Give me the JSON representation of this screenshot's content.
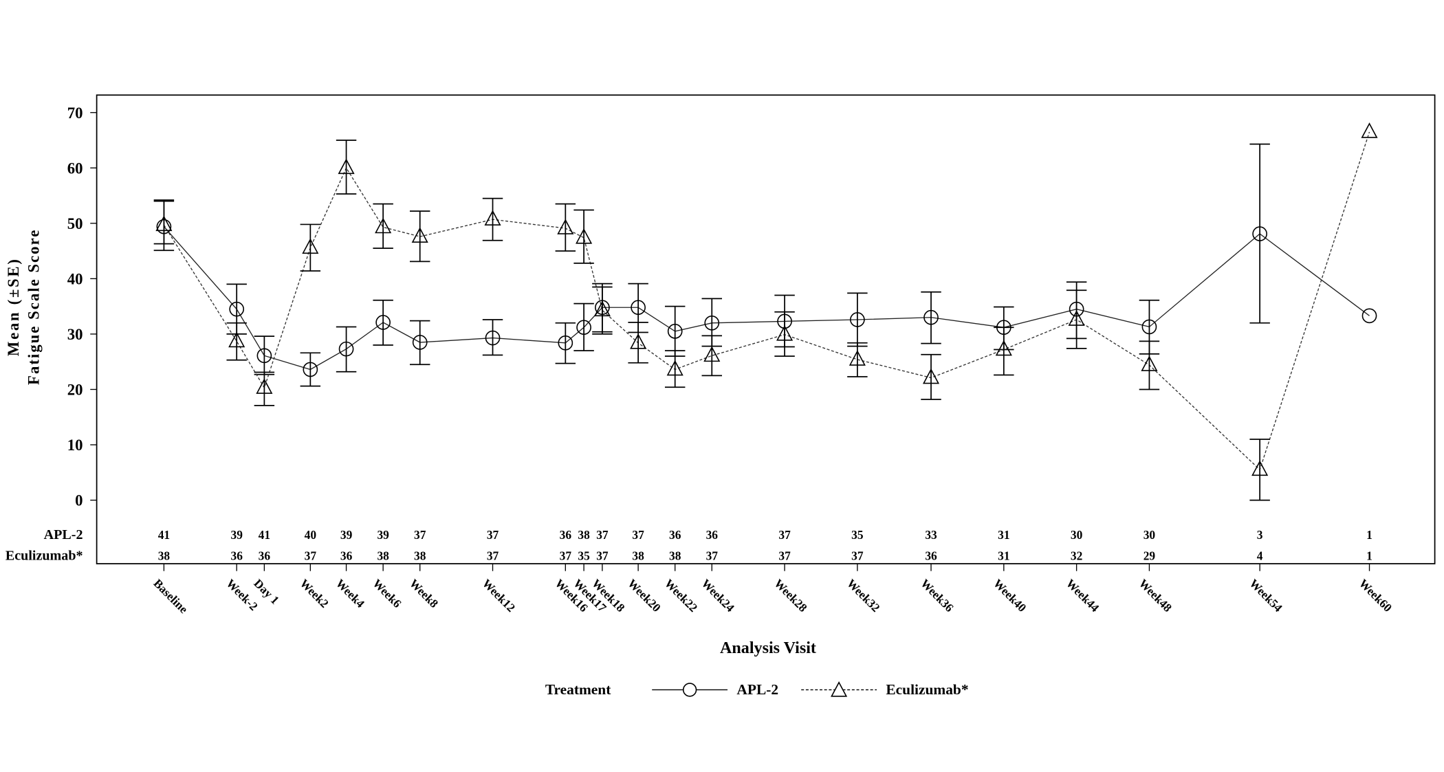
{
  "chart_data": {
    "type": "line",
    "ylabel_lines": [
      "Mean (±SE)",
      "Fatigue Scale Score"
    ],
    "xlabel": "Analysis Visit",
    "ylim": [
      0,
      70
    ],
    "yticks": [
      0,
      10,
      20,
      30,
      40,
      50,
      60,
      70
    ],
    "grid": false,
    "legend_placement": "bottom",
    "legend_title": "Treatment",
    "categories": [
      "Baseline",
      "Week-2",
      "Day 1",
      "Week2",
      "Week4",
      "Week6",
      "Week8",
      "Week12",
      "Week16",
      "Week17",
      "Week18",
      "Week20",
      "Week22",
      "Week24",
      "Week28",
      "Week32",
      "Week36",
      "Week40",
      "Week44",
      "Week48",
      "Week54",
      "Week60"
    ],
    "series": [
      {
        "name": "APL-2",
        "marker": "circle",
        "line": "solid",
        "mean": [
          49.4,
          34.5,
          26.1,
          23.6,
          27.3,
          32.1,
          28.5,
          29.3,
          28.4,
          31.2,
          34.8,
          34.8,
          30.5,
          32.0,
          32.3,
          32.6,
          33.0,
          31.2,
          34.5,
          31.3,
          48.1,
          33.3
        ],
        "lower": [
          46.3,
          30.0,
          22.7,
          20.6,
          23.2,
          28.0,
          24.5,
          26.2,
          24.7,
          27.0,
          30.4,
          30.3,
          26.0,
          27.8,
          27.7,
          27.8,
          28.3,
          27.2,
          29.2,
          26.4,
          32.0,
          null
        ],
        "upper": [
          54.2,
          39.0,
          29.6,
          26.6,
          31.3,
          36.1,
          32.4,
          32.6,
          32.0,
          35.5,
          39.1,
          39.1,
          35.0,
          36.4,
          37.0,
          37.4,
          37.6,
          34.9,
          39.4,
          36.1,
          64.3,
          null
        ],
        "n": [
          "41",
          "39",
          "41",
          "40",
          "39",
          "39",
          "37",
          "37",
          "36",
          "38",
          "37",
          "37",
          "36",
          "36",
          "37",
          "35",
          "33",
          "31",
          "30",
          "30",
          "3",
          "1"
        ]
      },
      {
        "name": "Eculizumab*",
        "marker": "triangle",
        "line": "dashed",
        "mean": [
          49.7,
          28.7,
          20.3,
          45.6,
          60.0,
          49.3,
          47.6,
          50.7,
          49.1,
          47.4,
          34.3,
          28.4,
          23.6,
          26.1,
          29.9,
          25.4,
          22.1,
          27.2,
          32.6,
          24.4,
          5.5,
          66.5
        ],
        "lower": [
          45.1,
          25.3,
          17.1,
          41.4,
          55.3,
          45.5,
          43.1,
          46.9,
          45.0,
          42.8,
          30.0,
          24.8,
          20.4,
          22.5,
          26.0,
          22.3,
          18.2,
          22.6,
          27.4,
          20.0,
          0.0,
          null
        ],
        "upper": [
          54.0,
          32.0,
          23.1,
          49.8,
          65.0,
          53.5,
          52.2,
          54.5,
          53.5,
          52.4,
          38.5,
          32.1,
          27.0,
          29.7,
          34.0,
          28.4,
          26.3,
          31.2,
          37.9,
          28.7,
          11.0,
          null
        ],
        "n": [
          "38",
          "36",
          "36",
          "37",
          "36",
          "38",
          "38",
          "37",
          "37",
          "35",
          "37",
          "38",
          "38",
          "37",
          "37",
          "37",
          "36",
          "31",
          "32",
          "29",
          "4",
          "1"
        ]
      }
    ],
    "row_labels": [
      "APL-2",
      "Eculizumab*"
    ],
    "color": "#000000"
  }
}
